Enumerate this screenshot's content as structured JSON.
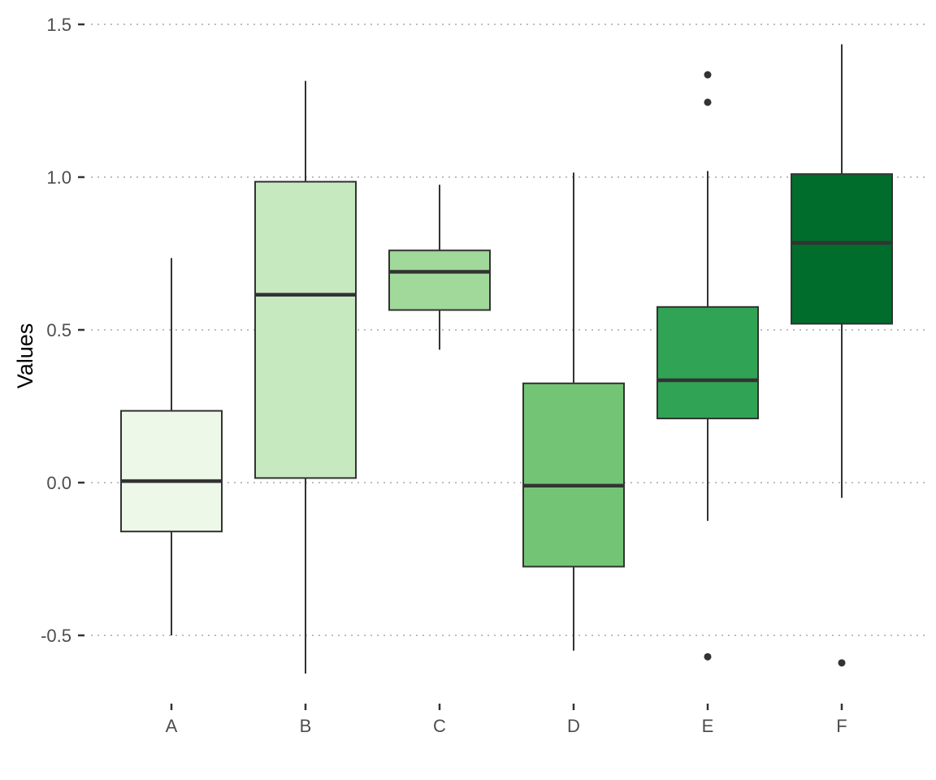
{
  "chart_data": {
    "type": "boxplot",
    "title": "",
    "xlabel": "",
    "ylabel": "Values",
    "ylim": [
      -0.72,
      1.55
    ],
    "y_ticks": [
      -0.5,
      0.0,
      0.5,
      1.0,
      1.5
    ],
    "y_tick_labels": [
      "-0.5",
      "0.0",
      "0.5",
      "1.0",
      "1.5"
    ],
    "grid": "horizontal-dotted",
    "legend": "none",
    "categories": [
      "A",
      "B",
      "C",
      "D",
      "E",
      "F"
    ],
    "boxes": [
      {
        "category": "A",
        "whisker_low": -0.5,
        "q1": -0.16,
        "median": 0.005,
        "q3": 0.235,
        "whisker_high": 0.735,
        "outliers": [],
        "color": "#edf8e9"
      },
      {
        "category": "B",
        "whisker_low": -0.625,
        "q1": 0.015,
        "median": 0.615,
        "q3": 0.985,
        "whisker_high": 1.315,
        "outliers": [],
        "color": "#c7e9c0"
      },
      {
        "category": "C",
        "whisker_low": 0.435,
        "q1": 0.565,
        "median": 0.69,
        "q3": 0.76,
        "whisker_high": 0.975,
        "outliers": [],
        "color": "#a1d99b"
      },
      {
        "category": "D",
        "whisker_low": -0.55,
        "q1": -0.275,
        "median": -0.01,
        "q3": 0.325,
        "whisker_high": 1.015,
        "outliers": [],
        "color": "#74c476"
      },
      {
        "category": "E",
        "whisker_low": -0.125,
        "q1": 0.21,
        "median": 0.335,
        "q3": 0.575,
        "whisker_high": 1.02,
        "outliers": [
          1.335,
          1.245,
          -0.57
        ],
        "color": "#31a354"
      },
      {
        "category": "F",
        "whisker_low": -0.05,
        "q1": 0.52,
        "median": 0.785,
        "q3": 1.01,
        "whisker_high": 1.435,
        "outliers": [
          -0.59
        ],
        "color": "#006d2c"
      }
    ]
  }
}
